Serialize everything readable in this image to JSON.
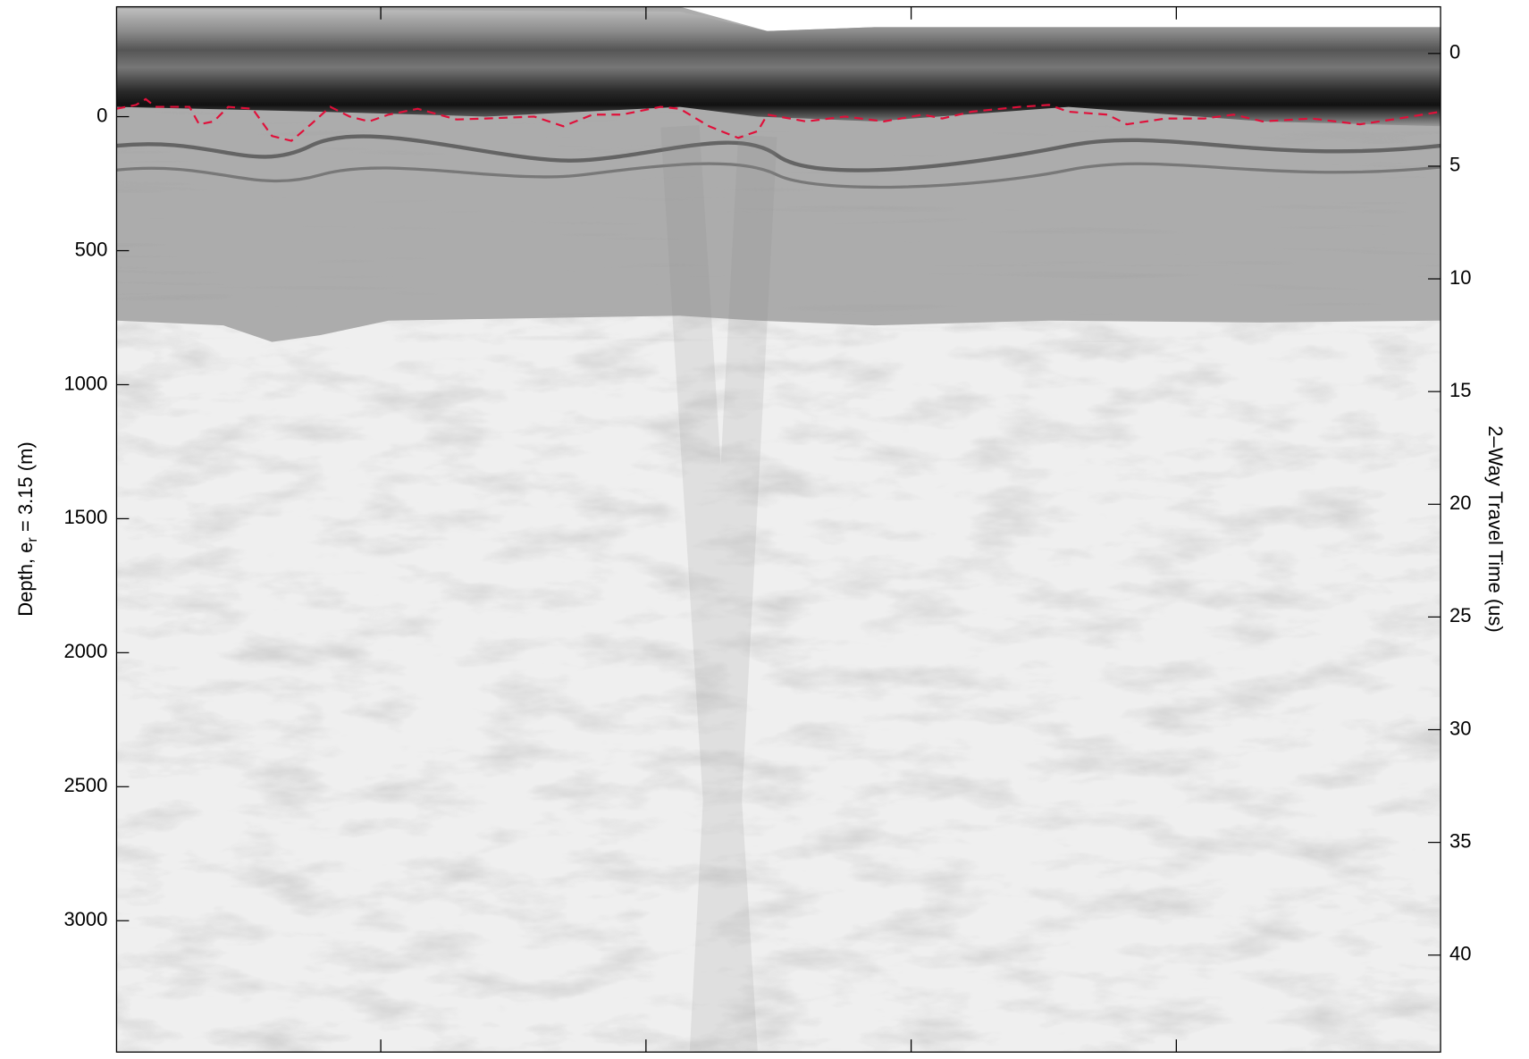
{
  "chart_data": {
    "type": "radargram",
    "ylabel": {
      "main": "Depth, e",
      "sub": "r",
      "tail": " = 3.15 (m)"
    },
    "y2label": "2–Way Travel Time (us)",
    "ylim": [
      -410,
      3490
    ],
    "yticks": [
      0,
      500,
      1000,
      1500,
      2000,
      2500,
      3000
    ],
    "y2lim": [
      -2.07,
      44.3
    ],
    "y2ticks": [
      0,
      5,
      10,
      15,
      20,
      25,
      30,
      35,
      40
    ]
  }
}
